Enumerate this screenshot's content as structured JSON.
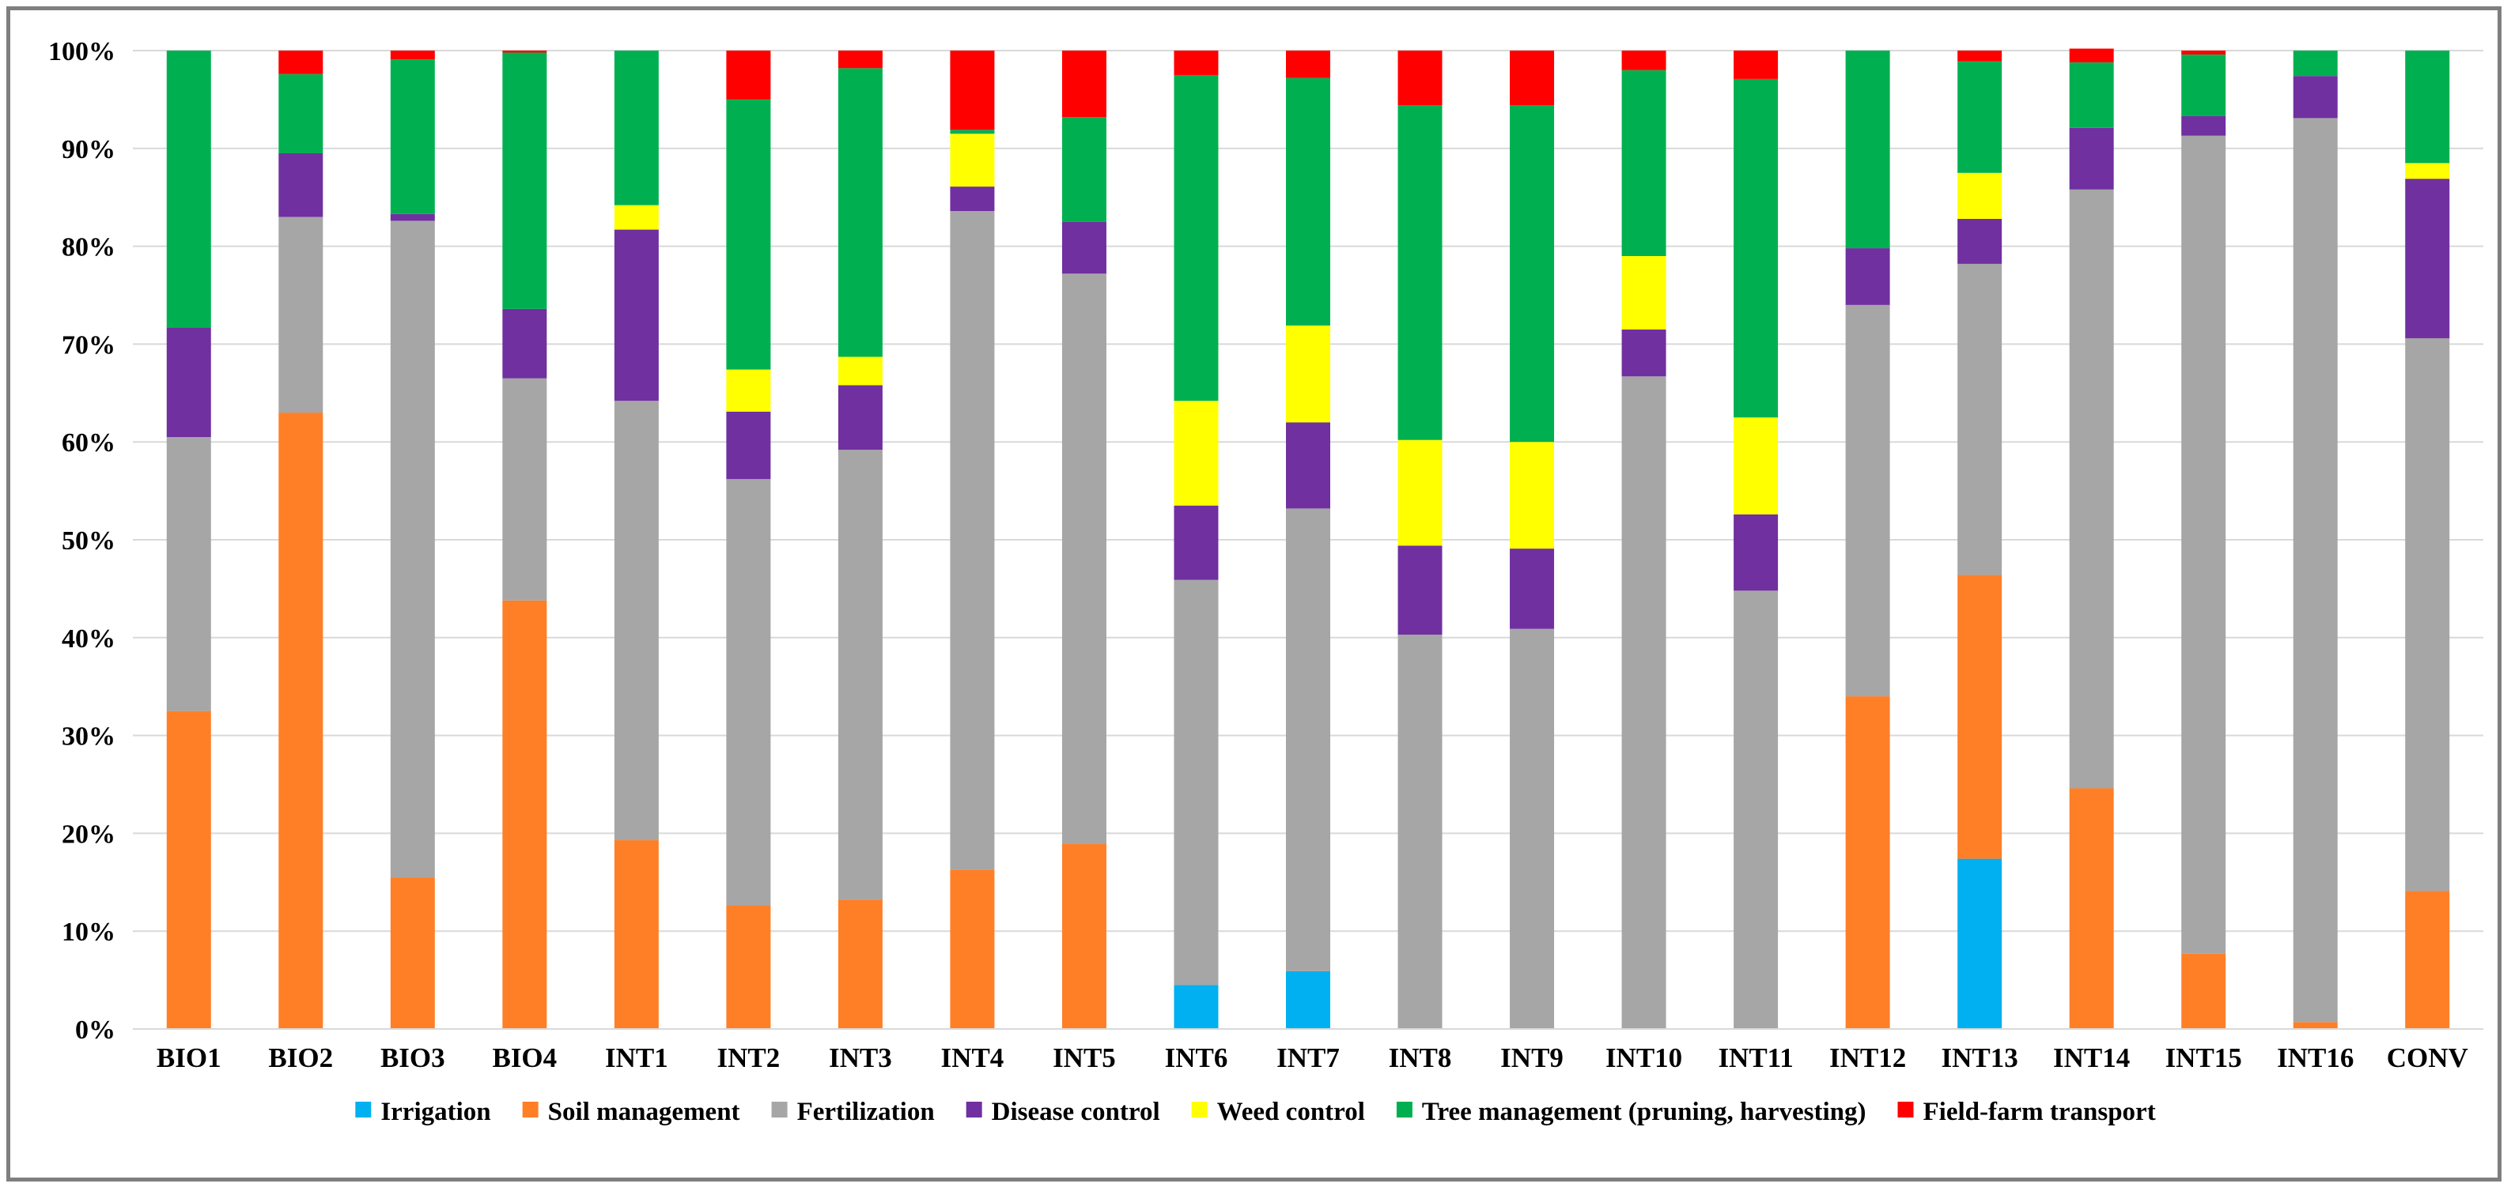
{
  "chart_data": {
    "type": "bar",
    "stacked": true,
    "percent": true,
    "title": "",
    "xlabel": "",
    "ylabel": "",
    "ylim": [
      0,
      100
    ],
    "yticks": [
      0,
      10,
      20,
      30,
      40,
      50,
      60,
      70,
      80,
      90,
      100
    ],
    "ytick_labels": [
      "0%",
      "10%",
      "20%",
      "30%",
      "40%",
      "50%",
      "60%",
      "70%",
      "80%",
      "90%",
      "100%"
    ],
    "grid": true,
    "legend_position": "bottom",
    "categories": [
      "BIO1",
      "BIO2",
      "BIO3",
      "BIO4",
      "INT1",
      "INT2",
      "INT3",
      "INT4",
      "INT5",
      "INT6",
      "INT7",
      "INT8",
      "INT9",
      "INT10",
      "INT11",
      "INT12",
      "INT13",
      "INT14",
      "INT15",
      "INT16",
      "CONV"
    ],
    "series": [
      {
        "name": "Irrigation",
        "color": "#00b0f0",
        "values": [
          0,
          0,
          0,
          0,
          0,
          0,
          0,
          0,
          0,
          4.5,
          5.9,
          0,
          0,
          0,
          0,
          0,
          17.4,
          0,
          0,
          0,
          0
        ]
      },
      {
        "name": "Soil management",
        "color": "#ff7f27",
        "values": [
          32.5,
          63,
          15.5,
          43.8,
          19.3,
          12.6,
          13.2,
          16.3,
          18.9,
          0,
          0,
          0,
          0,
          0,
          0,
          34,
          29,
          24.6,
          7.7,
          0.7,
          14.1
        ]
      },
      {
        "name": "Fertilization",
        "color": "#a6a6a6",
        "values": [
          28,
          20,
          67.1,
          22.7,
          44.9,
          43.6,
          46,
          67.3,
          58.3,
          41.4,
          47.3,
          40.3,
          40.9,
          66.7,
          44.8,
          40,
          31.8,
          61.2,
          83.6,
          92.4,
          56.5
        ]
      },
      {
        "name": "Disease control",
        "color": "#7030a0",
        "values": [
          11.2,
          6.5,
          0.7,
          7.1,
          17.5,
          6.9,
          6.6,
          2.5,
          5.3,
          7.6,
          8.8,
          9.1,
          8.2,
          4.8,
          7.8,
          5.8,
          4.6,
          6.3,
          2,
          4.3,
          16.3
        ]
      },
      {
        "name": "Weed control",
        "color": "#ffff00",
        "values": [
          0,
          0,
          0,
          0,
          2.5,
          4.3,
          2.9,
          5.4,
          0,
          10.7,
          9.9,
          10.8,
          10.9,
          7.5,
          9.9,
          0,
          4.7,
          0,
          0,
          0,
          1.6
        ]
      },
      {
        "name": "Tree management (pruning, harvesting)",
        "color": "#00b050",
        "values": [
          28.3,
          8.1,
          15.8,
          26.2,
          15.8,
          27.6,
          29.5,
          0.4,
          10.7,
          33.3,
          25.3,
          34.2,
          34.4,
          19,
          34.6,
          20.2,
          11.4,
          6.7,
          6.3,
          2.6,
          11.5
        ]
      },
      {
        "name": "Field-farm transport",
        "color": "#ff0000",
        "values": [
          0,
          2.4,
          0.9,
          0.2,
          0,
          5,
          1.8,
          8.1,
          6.8,
          2.5,
          2.8,
          5.6,
          5.6,
          2,
          2.9,
          0,
          1.1,
          1.4,
          0.4,
          0,
          0
        ]
      }
    ]
  }
}
